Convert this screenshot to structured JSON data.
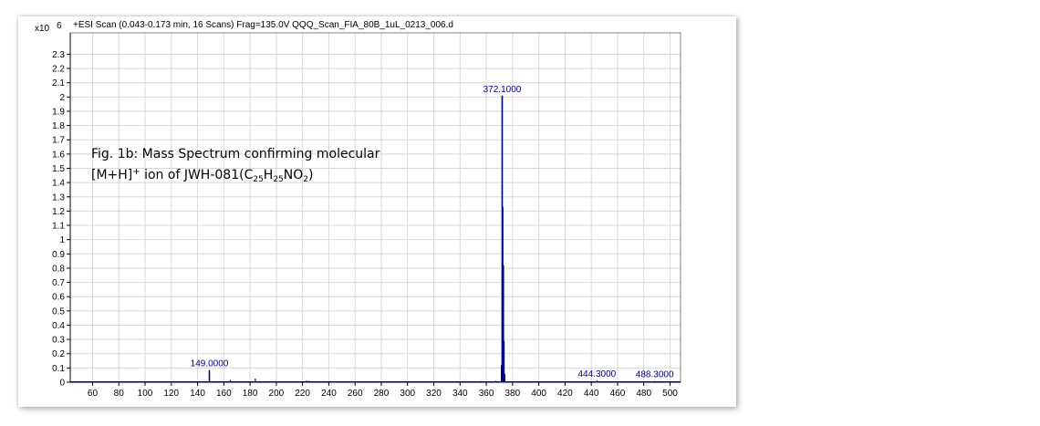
{
  "header": {
    "scale_prefix": "x10",
    "scale_exponent": "6",
    "scan_info": "+ESI Scan (0.043-0.173 min, 16 Scans) Frag=135.0V QQQ_Scan_FIA_80B_1uL_0213_006.d"
  },
  "caption": {
    "line1": "Fig. 1b: Mass Spectrum confirming molecular",
    "line2_prefix": "[M+H]",
    "line2_sup": "+",
    "line2_mid": " ion of JWH-081(C",
    "sub1": "25",
    "h": "H",
    "sub2": "25",
    "no": "NO",
    "sub3": "2",
    "close": ")"
  },
  "colors": {
    "trace": "#00008b",
    "grid": "#d8d8d8",
    "axis": "#000000"
  },
  "chart_data": {
    "type": "bar",
    "xlim": [
      43,
      508
    ],
    "ylim": [
      0,
      2.45
    ],
    "xticks": [
      60,
      80,
      100,
      120,
      140,
      160,
      180,
      200,
      220,
      240,
      260,
      280,
      300,
      320,
      340,
      360,
      380,
      400,
      420,
      440,
      460,
      480,
      500
    ],
    "yticks": [
      0,
      0.1,
      0.2,
      0.3,
      0.4,
      0.5,
      0.6,
      0.7,
      0.8,
      0.9,
      1,
      1.1,
      1.2,
      1.3,
      1.4,
      1.5,
      1.6,
      1.7,
      1.8,
      1.9,
      2,
      2.1,
      2.2,
      2.3
    ],
    "grid": true,
    "peaks": [
      {
        "x": 372.1,
        "y": 2.01
      },
      {
        "x": 372.5,
        "y": 1.23
      },
      {
        "x": 373.0,
        "y": 0.82
      },
      {
        "x": 373.4,
        "y": 0.29
      },
      {
        "x": 371.6,
        "y": 0.12
      },
      {
        "x": 374.0,
        "y": 0.06
      },
      {
        "x": 149.0,
        "y": 0.085
      },
      {
        "x": 184.0,
        "y": 0.025
      },
      {
        "x": 165.0,
        "y": 0.015
      },
      {
        "x": 223.0,
        "y": 0.012
      },
      {
        "x": 225.0,
        "y": 0.01
      },
      {
        "x": 444.3,
        "y": 0.012
      },
      {
        "x": 488.3,
        "y": 0.008
      },
      {
        "x": 367.0,
        "y": 0.01
      },
      {
        "x": 356.0,
        "y": 0.008
      },
      {
        "x": 236.0,
        "y": 0.008
      },
      {
        "x": 280.0,
        "y": 0.006
      },
      {
        "x": 320.0,
        "y": 0.005
      },
      {
        "x": 340.0,
        "y": 0.005
      },
      {
        "x": 70.0,
        "y": 0.004
      },
      {
        "x": 100.0,
        "y": 0.004
      },
      {
        "x": 120.0,
        "y": 0.004
      },
      {
        "x": 200.0,
        "y": 0.005
      },
      {
        "x": 260.0,
        "y": 0.004
      }
    ],
    "annotations": [
      {
        "x": 372.1,
        "y": 2.01,
        "label": "372.1000"
      },
      {
        "x": 149.0,
        "y": 0.085,
        "label": "149.0000"
      },
      {
        "x": 444.3,
        "y": 0.012,
        "label": "444.3000"
      },
      {
        "x": 488.3,
        "y": 0.008,
        "label": "488.3000"
      }
    ]
  }
}
